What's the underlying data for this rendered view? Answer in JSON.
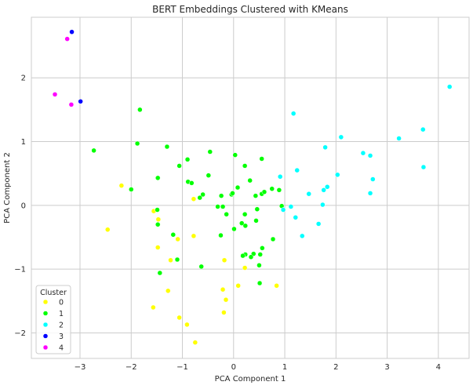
{
  "chart_data": {
    "type": "scatter",
    "title": "BERT Embeddings Clustered with KMeans",
    "xlabel": "PCA Component 1",
    "ylabel": "PCA Component 2",
    "xlim": [
      -3.95,
      4.6
    ],
    "ylim": [
      -2.4,
      2.95
    ],
    "xticks": [
      -3,
      -2,
      -1,
      0,
      1,
      2,
      3,
      4
    ],
    "yticks": [
      -2,
      -1,
      0,
      1,
      2
    ],
    "xtick_labels": [
      "−3",
      "−2",
      "−1",
      "0",
      "1",
      "2",
      "3",
      "4"
    ],
    "ytick_labels": [
      "−2",
      "−1",
      "0",
      "1",
      "2"
    ],
    "grid": true,
    "legend": {
      "title": "Cluster",
      "placement": "lower-left"
    },
    "series": [
      {
        "name": "0",
        "color": "#ffff00",
        "points": [
          [
            -2.19,
            0.31
          ],
          [
            -2.46,
            -0.38
          ],
          [
            -1.56,
            -0.09
          ],
          [
            -1.47,
            -0.22
          ],
          [
            -1.48,
            -0.66
          ],
          [
            -1.09,
            -0.53
          ],
          [
            -1.23,
            -0.86
          ],
          [
            -0.78,
            0.1
          ],
          [
            -0.78,
            -0.48
          ],
          [
            -0.18,
            -0.86
          ],
          [
            -1.28,
            -1.34
          ],
          [
            -1.06,
            -1.76
          ],
          [
            -1.57,
            -1.6
          ],
          [
            -0.91,
            -1.87
          ],
          [
            -0.21,
            -1.32
          ],
          [
            -0.15,
            -1.48
          ],
          [
            -0.19,
            -1.68
          ],
          [
            -0.75,
            -2.15
          ],
          [
            0.09,
            -1.26
          ],
          [
            0.22,
            -0.98
          ],
          [
            0.84,
            -1.26
          ]
        ]
      },
      {
        "name": "1",
        "color": "#00ff00",
        "points": [
          [
            -1.83,
            1.5
          ],
          [
            -2.73,
            0.86
          ],
          [
            -1.88,
            0.97
          ],
          [
            -1.3,
            0.92
          ],
          [
            -1.06,
            0.62
          ],
          [
            -0.9,
            0.72
          ],
          [
            -2.0,
            0.25
          ],
          [
            -1.48,
            0.43
          ],
          [
            -0.89,
            0.37
          ],
          [
            -0.82,
            0.35
          ],
          [
            -0.46,
            0.84
          ],
          [
            -0.49,
            0.47
          ],
          [
            -0.6,
            0.17
          ],
          [
            -0.66,
            0.12
          ],
          [
            -0.31,
            -0.02
          ],
          [
            -0.21,
            -0.02
          ],
          [
            -0.24,
            0.15
          ],
          [
            -0.04,
            0.17
          ],
          [
            -0.02,
            0.19
          ],
          [
            0.03,
            0.79
          ],
          [
            0.08,
            0.28
          ],
          [
            0.55,
            0.73
          ],
          [
            0.22,
            0.62
          ],
          [
            0.32,
            0.39
          ],
          [
            0.43,
            0.15
          ],
          [
            0.55,
            0.18
          ],
          [
            0.6,
            0.21
          ],
          [
            0.75,
            0.26
          ],
          [
            0.89,
            0.24
          ],
          [
            0.94,
            -0.01
          ],
          [
            0.46,
            -0.06
          ],
          [
            0.22,
            -0.14
          ],
          [
            0.44,
            -0.24
          ],
          [
            -0.14,
            -0.14
          ],
          [
            -0.25,
            -0.47
          ],
          [
            0.01,
            -0.37
          ],
          [
            0.16,
            -0.28
          ],
          [
            0.23,
            -0.32
          ],
          [
            0.56,
            -0.67
          ],
          [
            0.52,
            -0.77
          ],
          [
            0.39,
            -0.76
          ],
          [
            0.34,
            -0.81
          ],
          [
            0.23,
            -0.77
          ],
          [
            0.18,
            -0.79
          ],
          [
            0.77,
            -0.53
          ],
          [
            -1.48,
            -0.3
          ],
          [
            -1.49,
            -0.07
          ],
          [
            -1.18,
            -0.46
          ],
          [
            -1.1,
            -0.85
          ],
          [
            -1.44,
            -1.06
          ],
          [
            -0.63,
            -0.96
          ],
          [
            0.5,
            -0.94
          ],
          [
            0.51,
            -1.22
          ]
        ]
      },
      {
        "name": "2",
        "color": "#00ffff",
        "points": [
          [
            1.17,
            1.44
          ],
          [
            1.79,
            0.91
          ],
          [
            2.1,
            1.07
          ],
          [
            2.53,
            0.82
          ],
          [
            2.67,
            0.78
          ],
          [
            3.23,
            1.05
          ],
          [
            3.7,
            1.19
          ],
          [
            4.22,
            1.86
          ],
          [
            3.71,
            0.6
          ],
          [
            2.72,
            0.41
          ],
          [
            2.67,
            0.19
          ],
          [
            2.03,
            0.48
          ],
          [
            1.83,
            0.29
          ],
          [
            1.76,
            0.24
          ],
          [
            1.74,
            0.01
          ],
          [
            1.66,
            -0.29
          ],
          [
            1.47,
            0.18
          ],
          [
            1.24,
            0.55
          ],
          [
            0.91,
            0.45
          ],
          [
            0.97,
            -0.07
          ],
          [
            1.12,
            -0.02
          ],
          [
            1.21,
            -0.19
          ],
          [
            1.34,
            -0.48
          ]
        ]
      },
      {
        "name": "3",
        "color": "#0000ff",
        "points": [
          [
            -3.16,
            2.72
          ],
          [
            -2.99,
            1.63
          ]
        ]
      },
      {
        "name": "4",
        "color": "#ff00ff",
        "points": [
          [
            -3.25,
            2.61
          ],
          [
            -3.49,
            1.74
          ],
          [
            -3.17,
            1.58
          ]
        ]
      }
    ]
  }
}
